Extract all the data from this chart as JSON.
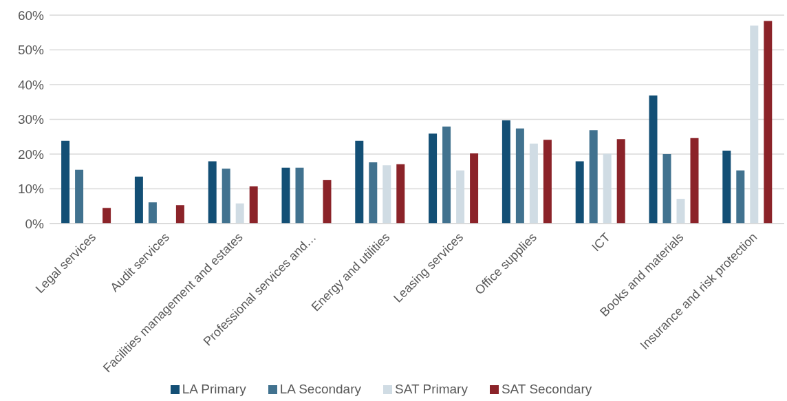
{
  "chart_data": {
    "type": "bar",
    "categories": [
      "Legal services",
      "Audit services",
      "Facilities management and estates",
      "Professional services and…",
      "Energy and utilities",
      "Leasing services",
      "Office supplies",
      "ICT",
      "Books and materials",
      "Insurance and risk protection"
    ],
    "series": [
      {
        "name": "LA Primary",
        "color": "#134f75",
        "values": [
          23.8,
          13.5,
          17.9,
          16.1,
          23.8,
          25.9,
          29.7,
          17.9,
          36.9,
          21.0
        ]
      },
      {
        "name": "LA Secondary",
        "color": "#41728f",
        "values": [
          15.5,
          6.1,
          15.8,
          16.1,
          17.6,
          27.9,
          27.4,
          26.9,
          20.0,
          15.3
        ]
      },
      {
        "name": "SAT Primary",
        "color": "#d0dce4",
        "values": [
          null,
          null,
          5.8,
          null,
          16.8,
          15.3,
          23.0,
          20.1,
          7.1,
          57.0
        ]
      },
      {
        "name": "SAT Secondary",
        "color": "#8b2329",
        "values": [
          4.5,
          5.3,
          10.7,
          12.5,
          17.1,
          20.2,
          24.1,
          24.3,
          24.6,
          58.3
        ]
      }
    ],
    "ylim": [
      0,
      60
    ],
    "yticks": [
      {
        "value": 0,
        "label": "0%"
      },
      {
        "value": 10,
        "label": "10%"
      },
      {
        "value": 20,
        "label": "20%"
      },
      {
        "value": 30,
        "label": "30%"
      },
      {
        "value": 40,
        "label": "40%"
      },
      {
        "value": 50,
        "label": "50%"
      },
      {
        "value": 60,
        "label": "60%"
      }
    ],
    "grid": "y",
    "legend": "bottom"
  }
}
